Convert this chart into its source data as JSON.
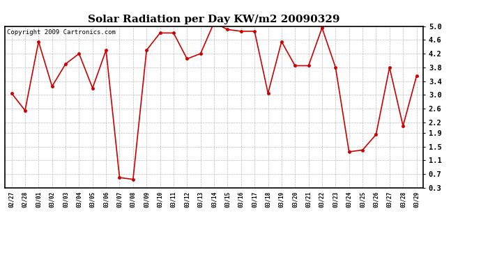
{
  "title": "Solar Radiation per Day KW/m2 20090329",
  "copyright": "Copyright 2009 Cartronics.com",
  "dates": [
    "02/27",
    "02/28",
    "03/01",
    "03/02",
    "03/03",
    "03/04",
    "03/05",
    "03/06",
    "03/07",
    "03/08",
    "03/09",
    "03/10",
    "03/11",
    "03/12",
    "03/13",
    "03/14",
    "03/15",
    "03/16",
    "03/17",
    "03/18",
    "03/19",
    "03/20",
    "03/21",
    "03/22",
    "03/23",
    "03/24",
    "03/25",
    "03/26",
    "03/27",
    "03/28",
    "03/29"
  ],
  "values": [
    3.05,
    2.55,
    4.55,
    3.25,
    3.9,
    4.2,
    3.2,
    4.3,
    0.6,
    0.55,
    4.3,
    4.8,
    4.8,
    4.05,
    4.2,
    5.1,
    4.9,
    4.85,
    4.85,
    3.05,
    4.55,
    3.85,
    3.85,
    4.95,
    3.8,
    1.35,
    1.4,
    1.85,
    3.8,
    2.1,
    3.55
  ],
  "line_color": "#cc0000",
  "marker": "o",
  "marker_size": 2.5,
  "line_width": 1.2,
  "ylim": [
    0.3,
    5.0
  ],
  "yticks": [
    0.3,
    0.7,
    1.1,
    1.5,
    1.9,
    2.2,
    2.6,
    3.0,
    3.4,
    3.8,
    4.2,
    4.6,
    5.0
  ],
  "background_color": "#ffffff",
  "grid_color": "#bbbbbb",
  "title_fontsize": 11,
  "copyright_fontsize": 6.5,
  "xtick_fontsize": 5.5,
  "ytick_fontsize": 7.5
}
